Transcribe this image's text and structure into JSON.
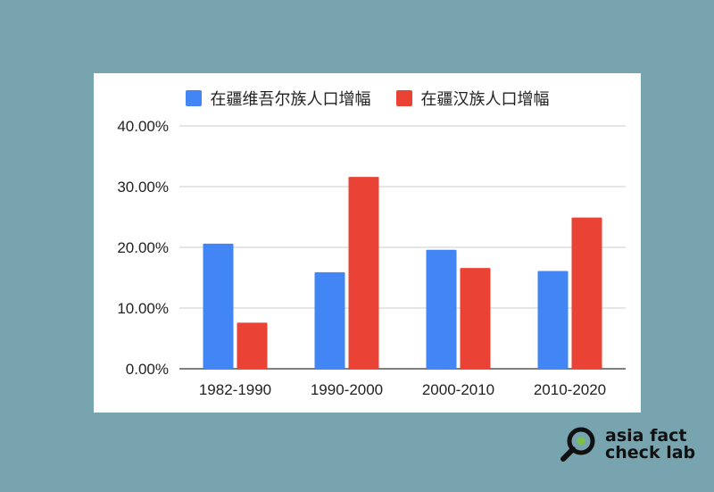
{
  "chart_data": {
    "type": "bar",
    "categories": [
      "1982-1990",
      "1990-2000",
      "2000-2010",
      "2010-2020"
    ],
    "series": [
      {
        "name": "在疆维吾尔族人口增幅",
        "color": "#4285f4",
        "values": [
          20.6,
          15.9,
          19.6,
          16.1
        ]
      },
      {
        "name": "在疆汉族人口增幅",
        "color": "#ea4335",
        "values": [
          7.6,
          31.6,
          16.6,
          24.9
        ]
      }
    ],
    "y_ticks": [
      "0.00%",
      "10.00%",
      "20.00%",
      "30.00%",
      "40.00%"
    ],
    "ylim": [
      0,
      40
    ],
    "grid": true,
    "legend_position": "top-center",
    "title": "",
    "xlabel": "",
    "ylabel": ""
  },
  "legend": {
    "uyghur_label": "在疆维吾尔族人口增幅",
    "han_label": "在疆汉族人口增幅"
  },
  "brand": {
    "line1": "asia fact",
    "line2": "check lab",
    "logo_icon": "magnifier-logo-icon",
    "accent_color": "#7bc043"
  },
  "colors": {
    "background": "#78a4b0",
    "card": "#ffffff"
  }
}
